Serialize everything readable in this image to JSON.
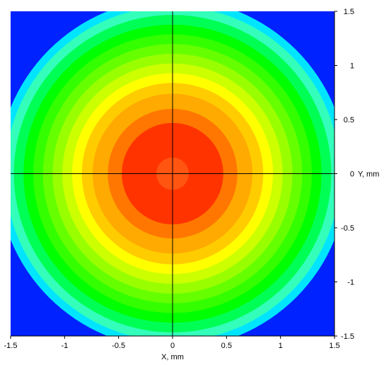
{
  "chart_data": {
    "type": "heatmap",
    "subtype": "filled-contour",
    "title": "",
    "xlabel": "X, mm",
    "ylabel": "Y, mm",
    "xlim": [
      -1.5,
      1.5
    ],
    "ylim": [
      -1.5,
      1.5
    ],
    "xticks": [
      -1.5,
      -1,
      -0.5,
      0,
      0.5,
      1,
      1.5
    ],
    "yticks": [
      1.5,
      1,
      0.5,
      0,
      -0.5,
      -1,
      -1.5
    ],
    "xtick_labels": [
      "-1.5",
      "-1",
      "-0.5",
      "0",
      "0.5",
      "1",
      "1.5"
    ],
    "ytick_labels": [
      "1.5",
      "1",
      "0.5",
      "0",
      "-0.5",
      "-1",
      "-1.5"
    ],
    "y_axis_side": "right",
    "crosshair": {
      "x": 0,
      "y": 0,
      "color": "#000000"
    },
    "background_color": "#0022ff",
    "grid": false,
    "legend": "none",
    "contours": [
      {
        "outer_radius_mm": 1.62,
        "color": "#00e5ff"
      },
      {
        "outer_radius_mm": 1.55,
        "color": "#33ffbb"
      },
      {
        "outer_radius_mm": 1.47,
        "color": "#00ff55"
      },
      {
        "outer_radius_mm": 1.38,
        "color": "#00ff00"
      },
      {
        "outer_radius_mm": 1.29,
        "color": "#33ff00"
      },
      {
        "outer_radius_mm": 1.2,
        "color": "#66ff00"
      },
      {
        "outer_radius_mm": 1.11,
        "color": "#99ff00"
      },
      {
        "outer_radius_mm": 1.02,
        "color": "#ccff00"
      },
      {
        "outer_radius_mm": 0.93,
        "color": "#ffff00"
      },
      {
        "outer_radius_mm": 0.84,
        "color": "#ffcc00"
      },
      {
        "outer_radius_mm": 0.74,
        "color": "#ffaa00"
      },
      {
        "outer_radius_mm": 0.6,
        "color": "#ff7700"
      },
      {
        "outer_radius_mm": 0.47,
        "color": "#ff3300"
      },
      {
        "outer_radius_mm": 0.15,
        "color": "#ff5511"
      }
    ]
  }
}
